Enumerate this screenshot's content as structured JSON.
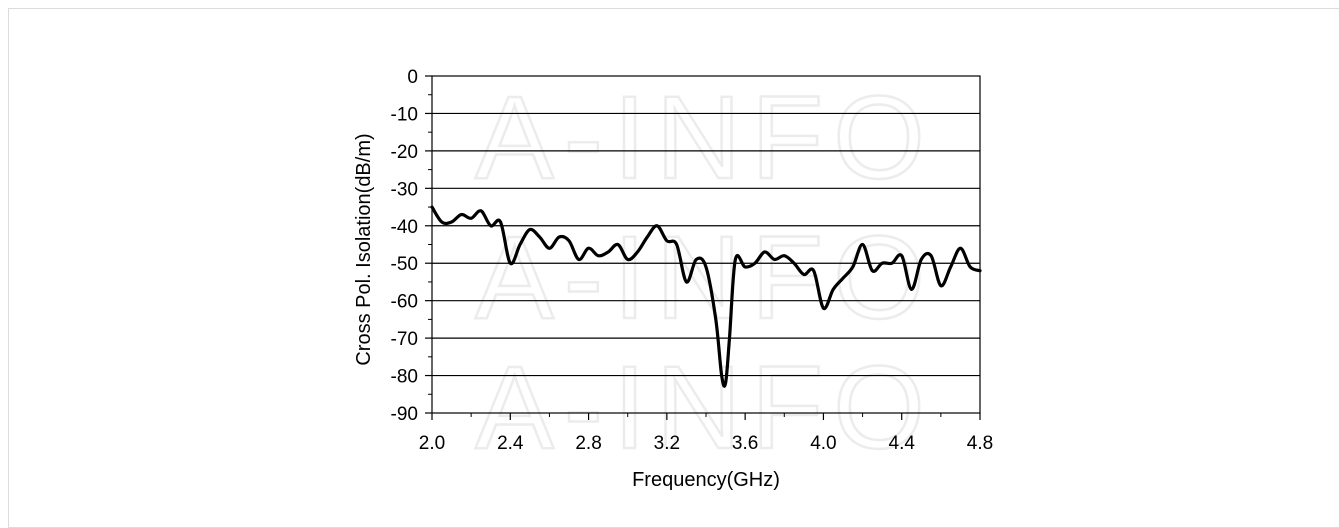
{
  "watermark": "A-INFO",
  "chart_data": {
    "type": "line",
    "title": "",
    "xlabel": "Frequency(GHz)",
    "ylabel": "Cross Pol. Isolation(dB/m)",
    "xlim": [
      2.0,
      4.8
    ],
    "ylim": [
      -90,
      0
    ],
    "x_ticks": [
      "2.0",
      "2.4",
      "2.8",
      "3.2",
      "3.6",
      "4.0",
      "4.4",
      "4.8"
    ],
    "y_ticks": [
      "0",
      "-10",
      "-20",
      "-30",
      "-40",
      "-50",
      "-60",
      "-70",
      "-80",
      "-90"
    ],
    "grid": "horizontal",
    "legend": "none",
    "line_color": "#000000",
    "series": [
      {
        "x": [
          2.0,
          2.05,
          2.1,
          2.15,
          2.2,
          2.25,
          2.3,
          2.35,
          2.4,
          2.45,
          2.5,
          2.55,
          2.6,
          2.65,
          2.7,
          2.75,
          2.8,
          2.85,
          2.9,
          2.95,
          3.0,
          3.05,
          3.1,
          3.15,
          3.2,
          3.25,
          3.3,
          3.35,
          3.4,
          3.45,
          3.48,
          3.5,
          3.52,
          3.55,
          3.6,
          3.65,
          3.7,
          3.75,
          3.8,
          3.85,
          3.9,
          3.95,
          4.0,
          4.05,
          4.1,
          4.15,
          4.2,
          4.25,
          4.3,
          4.35,
          4.4,
          4.45,
          4.5,
          4.55,
          4.6,
          4.65,
          4.7,
          4.75,
          4.8
        ],
        "y": [
          -35,
          -39,
          -39,
          -37,
          -38,
          -36,
          -40,
          -39,
          -50,
          -45,
          -41,
          -43,
          -46,
          -43,
          -44,
          -49,
          -46,
          -48,
          -47,
          -45,
          -49,
          -47,
          -43,
          -40,
          -44,
          -45,
          -55,
          -49,
          -51,
          -65,
          -80,
          -82,
          -70,
          -49,
          -51,
          -50,
          -47,
          -49,
          -48,
          -50,
          -53,
          -52,
          -62,
          -57,
          -54,
          -51,
          -45,
          -52,
          -50,
          -50,
          -48,
          -57,
          -49,
          -48,
          -56,
          -51,
          -46,
          -51,
          -52
        ]
      }
    ]
  }
}
